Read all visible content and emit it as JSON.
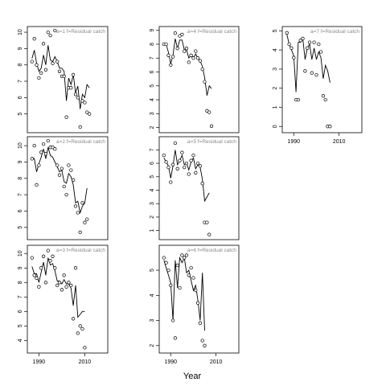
{
  "chart_data": [
    {
      "type": "line",
      "label": "a=1  f=Residual catch",
      "ylim": [
        4,
        10.2
      ],
      "yticks": [
        5,
        6,
        7,
        8,
        9,
        10
      ],
      "x_ticks": [
        1990,
        2010
      ],
      "x_ticks_visible": false,
      "xlim": [
        1986,
        2019
      ],
      "obs": [
        [
          1987,
          8.2
        ],
        [
          1988,
          9.6
        ],
        [
          1989,
          8.0
        ],
        [
          1990,
          7.2
        ],
        [
          1991,
          7.5
        ],
        [
          1992,
          9.3
        ],
        [
          1993,
          7.7
        ],
        [
          1994,
          10.0
        ],
        [
          1995,
          9.8
        ],
        [
          1996,
          8.1
        ],
        [
          1997,
          10.1
        ],
        [
          1998,
          8.2
        ],
        [
          1999,
          7.6
        ],
        [
          2000,
          7.3
        ],
        [
          2001,
          7.3
        ],
        [
          2002,
          4.8
        ],
        [
          2003,
          6.6
        ],
        [
          2004,
          6.6
        ],
        [
          2005,
          7.4
        ],
        [
          2006,
          6.2
        ],
        [
          2007,
          6.0
        ],
        [
          2008,
          4.2
        ],
        [
          2009,
          5.8
        ],
        [
          2010,
          5.7
        ],
        [
          2011,
          5.1
        ],
        [
          2012,
          5.0
        ]
      ],
      "fit": [
        [
          1987,
          8.4
        ],
        [
          1988,
          8.9
        ],
        [
          1989,
          8.1
        ],
        [
          1990,
          7.6
        ],
        [
          1991,
          7.8
        ],
        [
          1992,
          8.6
        ],
        [
          1993,
          8.0
        ],
        [
          1994,
          9.2
        ],
        [
          1995,
          8.3
        ],
        [
          1996,
          8.2
        ],
        [
          1997,
          8.5
        ],
        [
          1998,
          8.2
        ],
        [
          1999,
          7.8
        ],
        [
          2000,
          7.8
        ],
        [
          2001,
          7.6
        ],
        [
          2002,
          5.8
        ],
        [
          2003,
          7.2
        ],
        [
          2004,
          6.8
        ],
        [
          2005,
          7.4
        ],
        [
          2006,
          6.3
        ],
        [
          2007,
          6.7
        ],
        [
          2008,
          5.3
        ],
        [
          2009,
          6.2
        ],
        [
          2010,
          6.0
        ],
        [
          2011,
          6.8
        ],
        [
          2012,
          6.6
        ]
      ]
    },
    {
      "type": "line",
      "label": "a=2  f=Residual catch",
      "ylim": [
        4.4,
        10.4
      ],
      "yticks": [
        5,
        6,
        7,
        8,
        9,
        10
      ],
      "x_ticks": [
        1990,
        2010
      ],
      "x_ticks_visible": false,
      "xlim": [
        1986,
        2019
      ],
      "obs": [
        [
          1987,
          9.2
        ],
        [
          1988,
          10.0
        ],
        [
          1989,
          7.6
        ],
        [
          1990,
          8.8
        ],
        [
          1991,
          9.6
        ],
        [
          1992,
          10.1
        ],
        [
          1993,
          9.5
        ],
        [
          1994,
          10.3
        ],
        [
          1995,
          9.9
        ],
        [
          1996,
          9.9
        ],
        [
          1997,
          9.8
        ],
        [
          1998,
          8.8
        ],
        [
          1999,
          8.2
        ],
        [
          2000,
          8.6
        ],
        [
          2001,
          7.5
        ],
        [
          2002,
          7.0
        ],
        [
          2003,
          8.8
        ],
        [
          2004,
          8.5
        ],
        [
          2005,
          7.9
        ],
        [
          2006,
          6.3
        ],
        [
          2007,
          5.9
        ],
        [
          2008,
          4.7
        ],
        [
          2009,
          6.5
        ],
        [
          2010,
          5.3
        ],
        [
          2011,
          5.5
        ]
      ],
      "fit": [
        [
          1987,
          9.3
        ],
        [
          1988,
          9.2
        ],
        [
          1989,
          8.4
        ],
        [
          1990,
          8.9
        ],
        [
          1991,
          9.3
        ],
        [
          1992,
          9.8
        ],
        [
          1993,
          9.2
        ],
        [
          1994,
          9.9
        ],
        [
          1995,
          9.4
        ],
        [
          1996,
          9.3
        ],
        [
          1997,
          9.0
        ],
        [
          1998,
          8.7
        ],
        [
          1999,
          8.4
        ],
        [
          2000,
          8.5
        ],
        [
          2001,
          7.8
        ],
        [
          2002,
          7.7
        ],
        [
          2003,
          8.3
        ],
        [
          2004,
          8.1
        ],
        [
          2005,
          7.6
        ],
        [
          2006,
          6.5
        ],
        [
          2007,
          6.6
        ],
        [
          2008,
          5.9
        ],
        [
          2009,
          6.3
        ],
        [
          2010,
          6.5
        ],
        [
          2011,
          7.4
        ]
      ]
    },
    {
      "type": "line",
      "label": "a=3  f=Residual catch",
      "ylim": [
        3.3,
        10.4
      ],
      "yticks": [
        4,
        5,
        6,
        7,
        8,
        9,
        10
      ],
      "x_ticks": [
        1990,
        2010
      ],
      "x_ticks_visible": true,
      "xlim": [
        1986,
        2019
      ],
      "obs": [
        [
          1987,
          9.7
        ],
        [
          1988,
          8.5
        ],
        [
          1989,
          8.3
        ],
        [
          1990,
          7.7
        ],
        [
          1991,
          9.0
        ],
        [
          1992,
          9.8
        ],
        [
          1993,
          8.0
        ],
        [
          1994,
          10.2
        ],
        [
          1995,
          9.5
        ],
        [
          1996,
          9.8
        ],
        [
          1997,
          9.0
        ],
        [
          1998,
          7.8
        ],
        [
          1999,
          8.0
        ],
        [
          2000,
          7.5
        ],
        [
          2001,
          8.5
        ],
        [
          2002,
          7.7
        ],
        [
          2003,
          8.0
        ],
        [
          2004,
          7.8
        ],
        [
          2005,
          5.5
        ],
        [
          2006,
          9.0
        ],
        [
          2007,
          4.5
        ],
        [
          2008,
          5.0
        ],
        [
          2009,
          4.8
        ],
        [
          2010,
          3.5
        ]
      ],
      "fit": [
        [
          1987,
          9.1
        ],
        [
          1988,
          8.6
        ],
        [
          1989,
          8.6
        ],
        [
          1990,
          8.0
        ],
        [
          1991,
          8.7
        ],
        [
          1992,
          9.4
        ],
        [
          1993,
          8.5
        ],
        [
          1994,
          9.7
        ],
        [
          1995,
          9.2
        ],
        [
          1996,
          9.3
        ],
        [
          1997,
          8.8
        ],
        [
          1998,
          8.1
        ],
        [
          1999,
          8.1
        ],
        [
          2000,
          7.9
        ],
        [
          2001,
          8.2
        ],
        [
          2002,
          7.9
        ],
        [
          2003,
          7.9
        ],
        [
          2004,
          7.6
        ],
        [
          2005,
          6.4
        ],
        [
          2006,
          7.8
        ],
        [
          2007,
          5.6
        ],
        [
          2008,
          5.8
        ],
        [
          2009,
          6.0
        ],
        [
          2010,
          6.0
        ]
      ]
    },
    {
      "type": "line",
      "label": "a=4  f=Residual catch",
      "ylim": [
        1.8,
        9.1
      ],
      "yticks": [
        2,
        3,
        4,
        5,
        6,
        7,
        8,
        9
      ],
      "x_ticks": [
        1990,
        2010
      ],
      "x_ticks_visible": false,
      "xlim": [
        1986,
        2019
      ],
      "obs": [
        [
          1987,
          8.0
        ],
        [
          1988,
          8.0
        ],
        [
          1989,
          7.2
        ],
        [
          1990,
          6.5
        ],
        [
          1991,
          7.1
        ],
        [
          1992,
          8.8
        ],
        [
          1993,
          7.7
        ],
        [
          1994,
          8.6
        ],
        [
          1995,
          8.7
        ],
        [
          1996,
          7.5
        ],
        [
          1997,
          7.7
        ],
        [
          1998,
          6.7
        ],
        [
          1999,
          7.2
        ],
        [
          2000,
          7.0
        ],
        [
          2001,
          7.5
        ],
        [
          2002,
          7.0
        ],
        [
          2003,
          6.8
        ],
        [
          2004,
          6.2
        ],
        [
          2005,
          5.3
        ],
        [
          2006,
          3.2
        ],
        [
          2007,
          3.1
        ],
        [
          2008,
          2.1
        ]
      ],
      "fit": [
        [
          1987,
          8.1
        ],
        [
          1988,
          8.0
        ],
        [
          1989,
          7.4
        ],
        [
          1990,
          6.6
        ],
        [
          1991,
          7.2
        ],
        [
          1992,
          8.4
        ],
        [
          1993,
          7.7
        ],
        [
          1994,
          8.3
        ],
        [
          1995,
          8.3
        ],
        [
          1996,
          7.6
        ],
        [
          1997,
          7.6
        ],
        [
          1998,
          7.0
        ],
        [
          1999,
          7.2
        ],
        [
          2000,
          7.0
        ],
        [
          2001,
          7.3
        ],
        [
          2002,
          7.0
        ],
        [
          2003,
          6.8
        ],
        [
          2004,
          6.4
        ],
        [
          2005,
          5.6
        ],
        [
          2006,
          4.3
        ],
        [
          2007,
          5.0
        ],
        [
          2008,
          4.8
        ]
      ]
    },
    {
      "type": "line",
      "label": "a=5  f=Residual catch",
      "ylim": [
        0.5,
        7.8
      ],
      "yticks": [
        1,
        2,
        3,
        4,
        5,
        6,
        7
      ],
      "x_ticks": [
        1990,
        2010
      ],
      "x_ticks_visible": false,
      "xlim": [
        1986,
        2019
      ],
      "obs": [
        [
          1987,
          6.6
        ],
        [
          1988,
          6.1
        ],
        [
          1989,
          5.7
        ],
        [
          1990,
          4.6
        ],
        [
          1991,
          5.9
        ],
        [
          1992,
          7.5
        ],
        [
          1993,
          5.6
        ],
        [
          1994,
          6.2
        ],
        [
          1995,
          6.8
        ],
        [
          1996,
          5.7
        ],
        [
          1997,
          6.0
        ],
        [
          1998,
          5.2
        ],
        [
          1999,
          6.2
        ],
        [
          2000,
          6.6
        ],
        [
          2001,
          5.3
        ],
        [
          2002,
          6.0
        ],
        [
          2003,
          5.8
        ],
        [
          2004,
          4.5
        ],
        [
          2005,
          1.6
        ],
        [
          2006,
          1.6
        ],
        [
          2007,
          0.7
        ]
      ],
      "fit": [
        [
          1987,
          6.4
        ],
        [
          1988,
          6.1
        ],
        [
          1989,
          5.8
        ],
        [
          1990,
          4.9
        ],
        [
          1991,
          5.8
        ],
        [
          1992,
          7.0
        ],
        [
          1993,
          5.9
        ],
        [
          1994,
          6.2
        ],
        [
          1995,
          6.6
        ],
        [
          1996,
          5.9
        ],
        [
          1997,
          6.0
        ],
        [
          1998,
          5.5
        ],
        [
          1999,
          6.1
        ],
        [
          2000,
          6.4
        ],
        [
          2001,
          5.6
        ],
        [
          2002,
          5.9
        ],
        [
          2003,
          5.7
        ],
        [
          2004,
          4.8
        ],
        [
          2005,
          3.2
        ],
        [
          2006,
          3.5
        ],
        [
          2007,
          3.8
        ]
      ]
    },
    {
      "type": "line",
      "label": "a=6  f=Residual catch",
      "ylim": [
        1.8,
        5.9
      ],
      "yticks": [
        2,
        3,
        4,
        5
      ],
      "x_ticks": [
        1990,
        2010
      ],
      "x_ticks_visible": true,
      "xlim": [
        1986,
        2019
      ],
      "obs": [
        [
          1987,
          5.5
        ],
        [
          1988,
          5.3
        ],
        [
          1989,
          5.0
        ],
        [
          1990,
          4.4
        ],
        [
          1991,
          3.0
        ],
        [
          1992,
          2.3
        ],
        [
          1993,
          5.2
        ],
        [
          1994,
          4.3
        ],
        [
          1995,
          5.6
        ],
        [
          1996,
          5.5
        ],
        [
          1997,
          5.6
        ],
        [
          1998,
          4.8
        ],
        [
          1999,
          5.1
        ],
        [
          2000,
          4.7
        ],
        [
          2001,
          4.2
        ],
        [
          2002,
          3.7
        ],
        [
          2003,
          2.9
        ],
        [
          2004,
          2.2
        ],
        [
          2005,
          2.0
        ]
      ],
      "fit": [
        [
          1987,
          5.4
        ],
        [
          1988,
          5.1
        ],
        [
          1989,
          4.8
        ],
        [
          1990,
          4.5
        ],
        [
          1991,
          3.0
        ],
        [
          1992,
          5.4
        ],
        [
          1993,
          4.3
        ],
        [
          1994,
          5.5
        ],
        [
          1995,
          5.3
        ],
        [
          1996,
          5.5
        ],
        [
          1997,
          4.9
        ],
        [
          1998,
          5.0
        ],
        [
          1999,
          4.6
        ],
        [
          2000,
          4.2
        ],
        [
          2001,
          4.4
        ],
        [
          2002,
          3.8
        ],
        [
          2003,
          3.0
        ],
        [
          2004,
          4.9
        ],
        [
          2005,
          2.6
        ]
      ]
    },
    {
      "type": "line",
      "label": "a=7  f=Residual catch",
      "ylim": [
        -0.2,
        5.1
      ],
      "yticks": [
        0,
        1,
        2,
        3,
        4,
        5
      ],
      "x_ticks": [
        1990,
        2010
      ],
      "x_ticks_visible": true,
      "xlim": [
        1986,
        2019
      ],
      "obs": [
        [
          1987,
          4.9
        ],
        [
          1988,
          4.3
        ],
        [
          1989,
          4.1
        ],
        [
          1990,
          3.6
        ],
        [
          1991,
          1.4
        ],
        [
          1992,
          1.4
        ],
        [
          1993,
          4.5
        ],
        [
          1994,
          4.6
        ],
        [
          1995,
          2.9
        ],
        [
          1996,
          4.1
        ],
        [
          1997,
          4.4
        ],
        [
          1998,
          2.8
        ],
        [
          1999,
          4.4
        ],
        [
          2000,
          2.7
        ],
        [
          2001,
          4.3
        ],
        [
          2002,
          3.9
        ],
        [
          2003,
          1.6
        ],
        [
          2004,
          1.4
        ],
        [
          2005,
          0.0
        ],
        [
          2006,
          0.0
        ]
      ],
      "fit": [
        [
          1987,
          4.8
        ],
        [
          1988,
          4.3
        ],
        [
          1989,
          4.0
        ],
        [
          1990,
          3.7
        ],
        [
          1991,
          1.8
        ],
        [
          1992,
          4.4
        ],
        [
          1993,
          4.4
        ],
        [
          1994,
          4.6
        ],
        [
          1995,
          3.5
        ],
        [
          1996,
          4.1
        ],
        [
          1997,
          4.3
        ],
        [
          1998,
          3.5
        ],
        [
          1999,
          4.1
        ],
        [
          2000,
          3.5
        ],
        [
          2001,
          3.9
        ],
        [
          2002,
          3.6
        ],
        [
          2003,
          2.5
        ],
        [
          2004,
          3.2
        ],
        [
          2005,
          2.9
        ],
        [
          2006,
          2.3
        ]
      ]
    }
  ],
  "shared": {
    "xlabel": "Year"
  }
}
